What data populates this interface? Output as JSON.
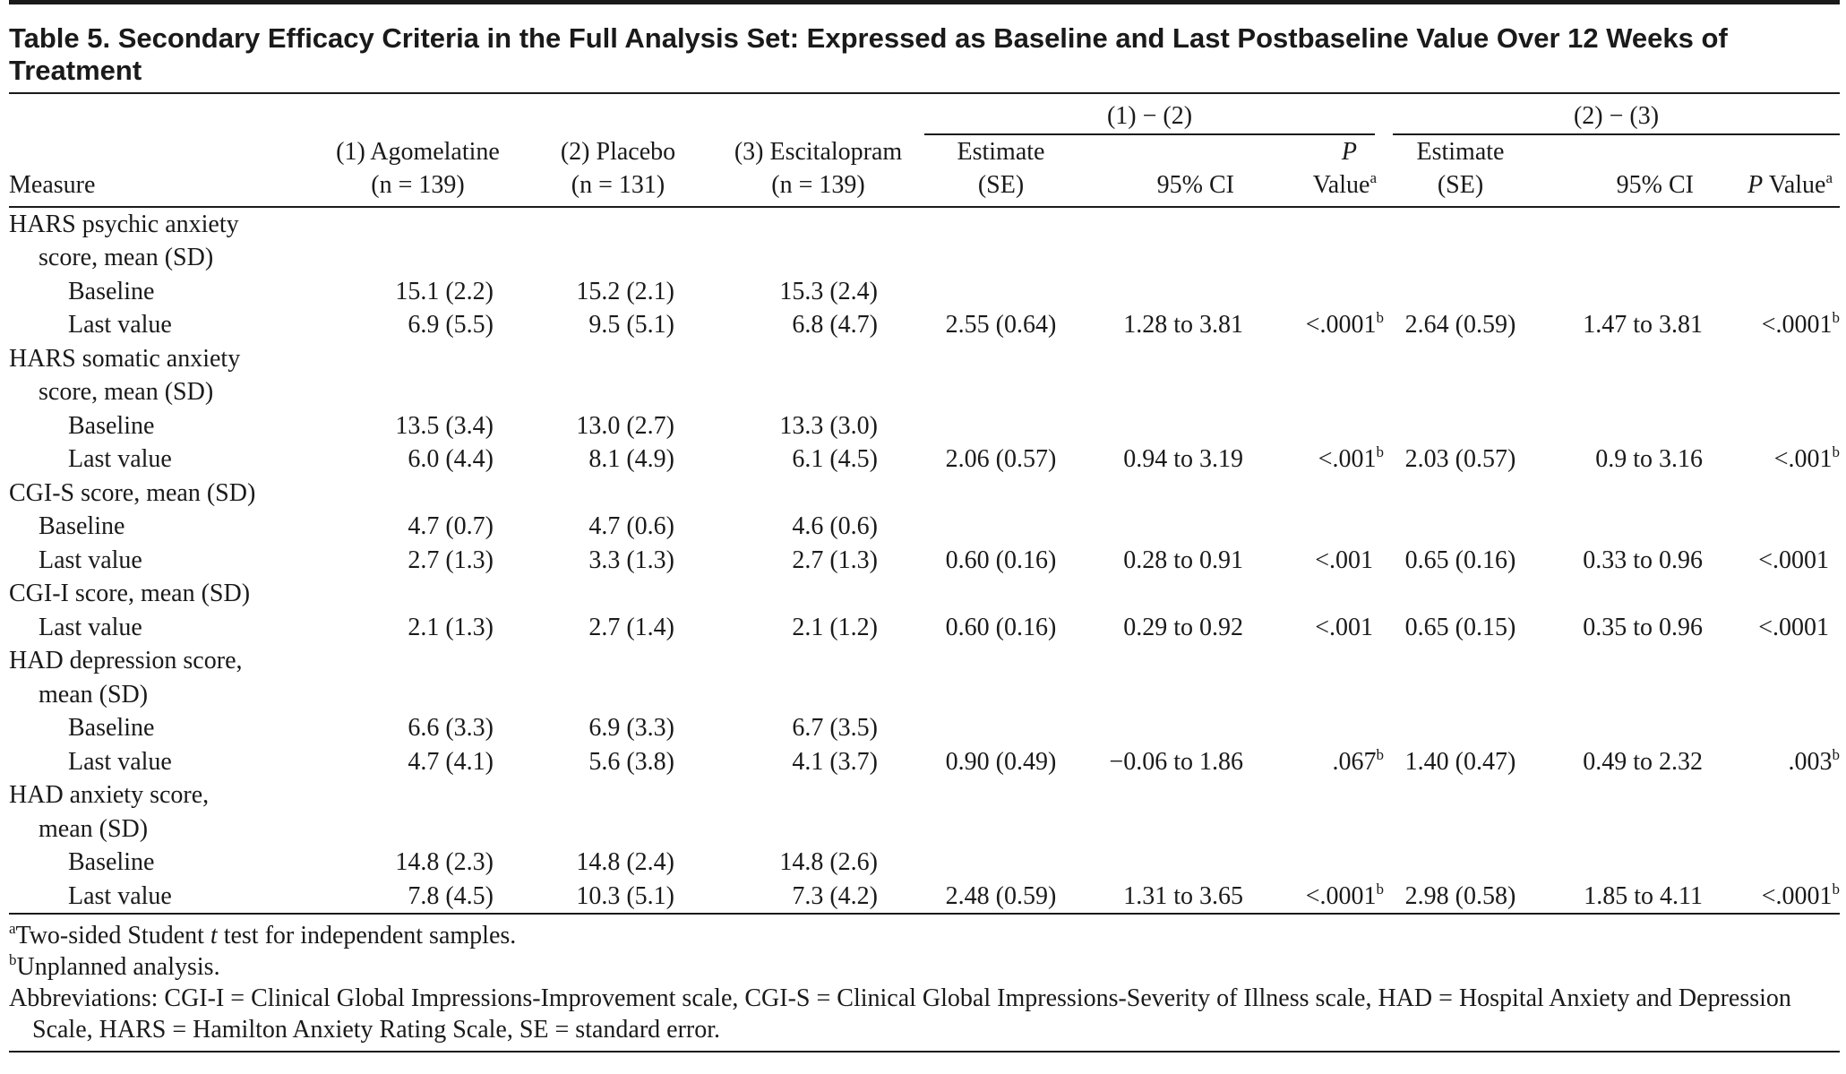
{
  "title": "Table 5. Secondary Efficacy Criteria in the Full Analysis Set: Expressed as Baseline and Last Postbaseline Value Over 12 Weeks of Treatment",
  "table": {
    "group_headers": [
      "(1) − (2)",
      "(2) − (3)"
    ],
    "columns": [
      {
        "line1": "Measure"
      },
      {
        "line1": "(1) Agomelatine",
        "line2": "(n = 139)"
      },
      {
        "line1": "(2) Placebo",
        "line2": "(n = 131)"
      },
      {
        "line1": "(3) Escitalopram",
        "line2": "(n = 139)"
      },
      {
        "line1": "Estimate",
        "line2": "(SE)"
      },
      {
        "line2": "95% CI"
      },
      {
        "italic": "P",
        "line2": "Value",
        "sup": "a"
      },
      {
        "line1": "Estimate",
        "line2": "(SE)"
      },
      {
        "line2": "95% CI"
      },
      {
        "italic": "P",
        "line2": " Value",
        "sup": "a"
      }
    ],
    "groups": [
      {
        "label_lines": [
          "HARS psychic anxiety",
          "score, mean (SD)"
        ],
        "rows": [
          {
            "label": "Baseline",
            "cells": [
              "15.1 (2.2)",
              "15.2 (2.1)",
              "15.3 (2.4)",
              null,
              null,
              null,
              null,
              null,
              null
            ]
          },
          {
            "label": "Last value",
            "cells": [
              "6.9 (5.5)",
              "9.5 (5.1)",
              "6.8 (4.7)",
              "2.55 (0.64)",
              "1.28 to 3.81",
              {
                "text": "<.0001",
                "sup": "b"
              },
              "2.64 (0.59)",
              "1.47 to 3.81",
              {
                "text": "<.0001",
                "sup": "b"
              }
            ]
          }
        ]
      },
      {
        "label_lines": [
          "HARS somatic anxiety",
          "score, mean (SD)"
        ],
        "rows": [
          {
            "label": "Baseline",
            "cells": [
              "13.5 (3.4)",
              "13.0 (2.7)",
              "13.3 (3.0)",
              null,
              null,
              null,
              null,
              null,
              null
            ]
          },
          {
            "label": "Last value",
            "cells": [
              "6.0 (4.4)",
              "8.1 (4.9)",
              "6.1 (4.5)",
              "2.06 (0.57)",
              "0.94 to 3.19",
              {
                "text": "<.001",
                "sup": "b"
              },
              "2.03 (0.57)",
              "0.9 to 3.16",
              {
                "text": "<.001",
                "sup": "b"
              }
            ]
          }
        ]
      },
      {
        "label_lines": [
          "CGI-S score, mean (SD)"
        ],
        "rows": [
          {
            "label": "Baseline",
            "cells": [
              "4.7 (0.7)",
              "4.7 (0.6)",
              "4.6 (0.6)",
              null,
              null,
              null,
              null,
              null,
              null
            ]
          },
          {
            "label": "Last value",
            "cells": [
              "2.7 (1.3)",
              "3.3 (1.3)",
              "2.7 (1.3)",
              "0.60 (0.16)",
              "0.28 to 0.91",
              "<.001",
              "0.65 (0.16)",
              "0.33 to 0.96",
              "<.0001"
            ]
          }
        ]
      },
      {
        "label_lines": [
          "CGI-I score, mean (SD)"
        ],
        "rows": [
          {
            "label": "Last value",
            "cells": [
              "2.1 (1.3)",
              "2.7 (1.4)",
              "2.1 (1.2)",
              "0.60 (0.16)",
              "0.29 to 0.92",
              "<.001",
              "0.65 (0.15)",
              "0.35 to 0.96",
              "<.0001"
            ]
          }
        ]
      },
      {
        "label_lines": [
          "HAD depression score,",
          "mean (SD)"
        ],
        "rows": [
          {
            "label": "Baseline",
            "cells": [
              "6.6 (3.3)",
              "6.9 (3.3)",
              "6.7 (3.5)",
              null,
              null,
              null,
              null,
              null,
              null
            ]
          },
          {
            "label": "Last value",
            "cells": [
              "4.7 (4.1)",
              "5.6 (3.8)",
              "4.1 (3.7)",
              "0.90 (0.49)",
              "−0.06 to 1.86",
              {
                "text": ".067",
                "sup": "b"
              },
              "1.40 (0.47)",
              "0.49 to 2.32",
              {
                "text": ".003",
                "sup": "b"
              }
            ]
          }
        ]
      },
      {
        "label_lines": [
          "HAD anxiety score,",
          "mean (SD)"
        ],
        "rows": [
          {
            "label": "Baseline",
            "cells": [
              "14.8 (2.3)",
              "14.8 (2.4)",
              "14.8 (2.6)",
              null,
              null,
              null,
              null,
              null,
              null
            ]
          },
          {
            "label": "Last value",
            "cells": [
              "7.8 (4.5)",
              "10.3 (5.1)",
              "7.3 (4.2)",
              "2.48 (0.59)",
              "1.31 to 3.65",
              {
                "text": "<.0001",
                "sup": "b"
              },
              "2.98 (0.58)",
              "1.85 to 4.11",
              {
                "text": "<.0001",
                "sup": "b"
              }
            ]
          }
        ]
      }
    ]
  },
  "footnotes": {
    "a": {
      "mark": "a",
      "before": "Two-sided Student ",
      "italic": "t",
      "after": " test for independent samples."
    },
    "b": {
      "mark": "b",
      "text": "Unplanned analysis."
    },
    "abbreviations": "Abbreviations: CGI-I = Clinical Global Impressions-Improvement scale, CGI-S = Clinical Global Impressions-Severity of Illness scale, HAD = Hospital Anxiety and Depression Scale, HARS = Hamilton Anxiety Rating Scale, SE = standard error."
  }
}
